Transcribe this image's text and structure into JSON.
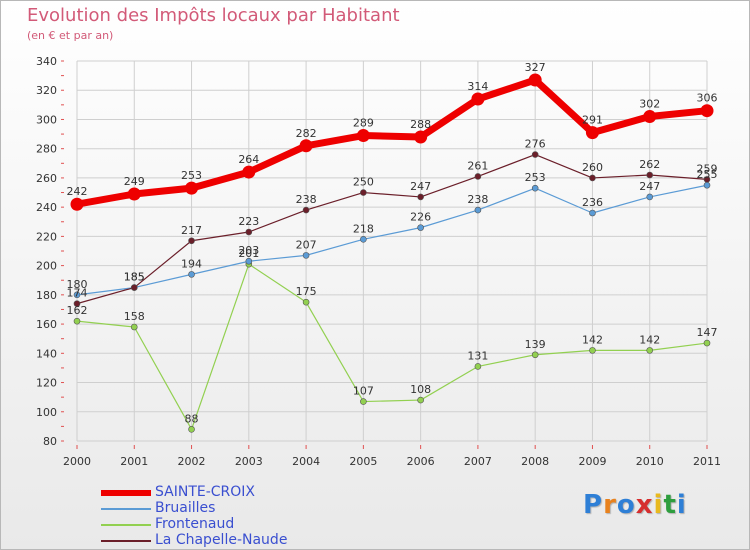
{
  "title": "Evolution des Impôts locaux par Habitant",
  "subtitle": "(en € et par an)",
  "brand": {
    "text": "Proxiti",
    "letter_colors": [
      "#2e7fd6",
      "#e8821e",
      "#2e7fd6",
      "#d62e2e",
      "#e8b91e",
      "#2e9e3e",
      "#2e7fd6"
    ]
  },
  "chart_data": {
    "type": "line",
    "x": [
      "2000",
      "2001",
      "2002",
      "2003",
      "2004",
      "2005",
      "2006",
      "2007",
      "2008",
      "2009",
      "2010",
      "2011"
    ],
    "ylim": [
      80,
      340
    ],
    "yticks": [
      80,
      100,
      120,
      140,
      160,
      180,
      200,
      220,
      240,
      260,
      280,
      300,
      320,
      340
    ],
    "grid": true,
    "legend_position": "bottom-left",
    "series": [
      {
        "name": "SAINTE-CROIX",
        "color": "#ee0000",
        "values": [
          242,
          249,
          253,
          264,
          282,
          289,
          288,
          314,
          327,
          291,
          302,
          306
        ]
      },
      {
        "name": "Bruailles",
        "color": "#5b9bd5",
        "values": [
          180,
          185,
          194,
          203,
          207,
          218,
          226,
          238,
          253,
          236,
          247,
          255
        ]
      },
      {
        "name": "Frontenaud",
        "color": "#92d050",
        "values": [
          162,
          158,
          88,
          201,
          175,
          107,
          108,
          131,
          139,
          142,
          142,
          147
        ]
      },
      {
        "name": "La Chapelle-Naude",
        "color": "#6b1f2a",
        "values": [
          174,
          185,
          217,
          223,
          238,
          250,
          247,
          261,
          276,
          260,
          262,
          259
        ]
      }
    ]
  }
}
